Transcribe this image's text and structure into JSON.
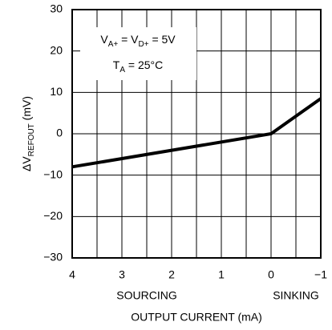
{
  "chart_data": {
    "type": "line",
    "ylabel": [
      {
        "text": "ΔV",
        "sub": false
      },
      {
        "text": "REFOUT",
        "sub": true
      },
      {
        "text": " (mV)",
        "sub": false
      }
    ],
    "xlabel": "OUTPUT CURRENT (mA)",
    "x_annotations": [
      {
        "text": "SOURCING",
        "x": 2.5
      },
      {
        "text": "SINKING",
        "x": -0.5
      }
    ],
    "annotation": [
      [
        {
          "text": "V",
          "sub": false
        },
        {
          "text": "A+",
          "sub": true
        },
        {
          "text": " = V",
          "sub": false
        },
        {
          "text": "D+",
          "sub": true
        },
        {
          "text": " = 5V",
          "sub": false
        }
      ],
      [
        {
          "text": "T",
          "sub": false
        },
        {
          "text": "A",
          "sub": true
        },
        {
          "text": "  =  25°C",
          "sub": false
        }
      ]
    ],
    "x": [
      4,
      0,
      -1
    ],
    "series": [
      {
        "color": "#000000",
        "values": [
          -8,
          0,
          8.5
        ]
      }
    ],
    "xlim": [
      4,
      -1
    ],
    "xticks": [
      4,
      3,
      2,
      1,
      0,
      {
        "value": -1,
        "label": "−1"
      }
    ],
    "xminor": [
      3.5,
      2.5,
      1.5,
      0.5,
      -0.5
    ],
    "ylim": [
      -30,
      30
    ],
    "yticks": [
      {
        "value": -30,
        "label": "−30"
      },
      {
        "value": -20,
        "label": "−20"
      },
      {
        "value": -10,
        "label": "−10"
      },
      0,
      10,
      20,
      30
    ],
    "grid": true
  }
}
